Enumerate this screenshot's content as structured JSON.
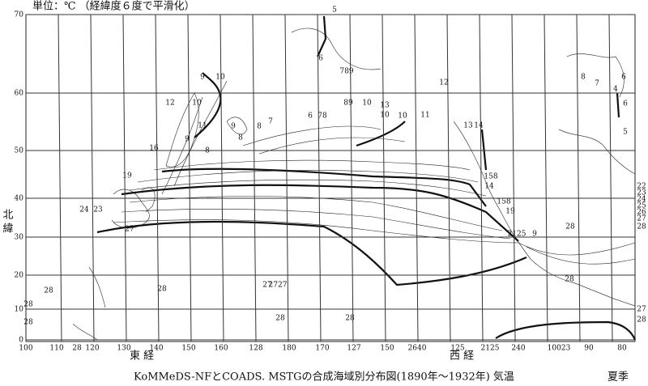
{
  "header": "単位：℃ （経緯度６度で平滑化）",
  "caption": "KoMMeDS-NFとCOADS. MSTGの合成海域別分布図(1890年～1932年) 気温",
  "season": "夏季",
  "axes": {
    "east_longitude": "東 経",
    "west_longitude": "西 経",
    "north_latitude": "北 緯"
  },
  "latitude_ticks": [
    "70",
    "60",
    "50",
    "40",
    "30",
    "20",
    "10",
    "0"
  ],
  "longitude_ticks": [
    "100",
    "110",
    "28",
    "120",
    "130",
    "140",
    "150",
    "160",
    "128",
    "180",
    "170",
    "127",
    "150",
    "2640",
    "125",
    "2125",
    "240",
    "10023",
    "90",
    "80"
  ],
  "contour_labels": [
    "5",
    "6",
    "789",
    "9",
    "10",
    "12",
    "8",
    "7",
    "6",
    "4",
    "6",
    "12",
    "10",
    "89",
    "10",
    "13",
    "10",
    "10",
    "11",
    "13",
    "14",
    "5",
    "9",
    "8",
    "7",
    "6",
    "78",
    "11",
    "9",
    "8",
    "8",
    "16",
    "19",
    "158",
    "14",
    "158",
    "19",
    "24",
    "23",
    "27",
    "2125",
    "9",
    "28",
    "28",
    "27",
    "2727",
    "28",
    "28",
    "28",
    "28",
    "28",
    "28",
    "22",
    "23",
    "24",
    "25",
    "26",
    "27",
    "28",
    "27",
    "28"
  ]
}
